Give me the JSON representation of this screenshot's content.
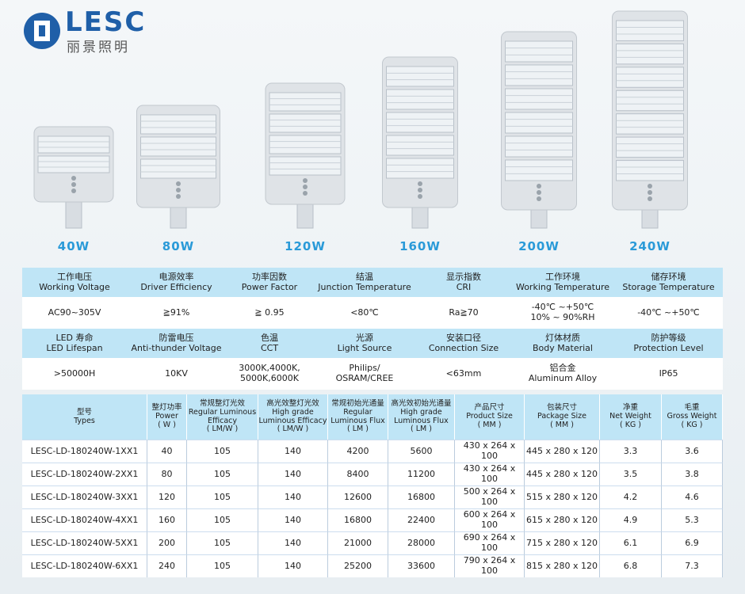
{
  "logo": {
    "brand": "LESC",
    "subtitle": "丽景照明"
  },
  "products": [
    "40W",
    "80W",
    "120W",
    "160W",
    "200W",
    "240W"
  ],
  "specs": {
    "groups": [
      {
        "headers": [
          {
            "cn": "工作电压",
            "en": "Working Voltage"
          },
          {
            "cn": "电源效率",
            "en": "Driver Efficiency"
          },
          {
            "cn": "功率因数",
            "en": "Power Factor"
          },
          {
            "cn": "结温",
            "en": "Junction Temperature"
          },
          {
            "cn": "显示指数",
            "en": "CRI"
          },
          {
            "cn": "工作环境",
            "en": "Working Temperature"
          },
          {
            "cn": "储存环境",
            "en": "Storage Temperature"
          }
        ],
        "values": [
          "AC90~305V",
          "≧91%",
          "≧ 0.95",
          "<80℃",
          "Ra≧70",
          "-40℃ ~+50℃\n10% ~ 90%RH",
          "-40℃ ~+50℃"
        ]
      },
      {
        "headers": [
          {
            "cn": "LED 寿命",
            "en": "LED Lifespan"
          },
          {
            "cn": "防雷电压",
            "en": "Anti-thunder Voltage"
          },
          {
            "cn": "色温",
            "en": "CCT"
          },
          {
            "cn": "光源",
            "en": "Light Source"
          },
          {
            "cn": "安装口径",
            "en": "Connection Size"
          },
          {
            "cn": "灯体材质",
            "en": "Body Material"
          },
          {
            "cn": "防护等级",
            "en": "Protection Level"
          }
        ],
        "values": [
          ">50000H",
          "10KV",
          "3000K,4000K,\n5000K,6000K",
          "Philips/\nOSRAM/CREE",
          "<63mm",
          "铝合金\nAluminum Alloy",
          "IP65"
        ]
      }
    ]
  },
  "table": {
    "header": [
      "型号\nTypes",
      "整灯功率\nPower\n( W )",
      "常规整灯光效\nRegular Luminous\nEfficacy\n( LM/W )",
      "高光效整灯光效\nHigh grade\nLuminous Efficacy\n( LM/W )",
      "常规初始光通量\nRegular\nLuminous Flux\n( LM )",
      "高光效初始光通量\nHigh grade\nLuminous Flux\n( LM )",
      "产品尺寸\nProduct Size\n( MM )",
      "包装尺寸\nPackage Size\n( MM )",
      "净重\nNet Weight\n( KG )",
      "毛重\nGross Weight\n( KG )"
    ],
    "rows": [
      [
        "LESC-LD-180240W-1XX1",
        40,
        105,
        140,
        4200,
        5600,
        "430 x 264 x 100",
        "445 x 280 x 120",
        3.3,
        3.6
      ],
      [
        "LESC-LD-180240W-2XX1",
        80,
        105,
        140,
        8400,
        11200,
        "430 x 264 x 100",
        "445 x 280 x 120",
        3.5,
        3.8
      ],
      [
        "LESC-LD-180240W-3XX1",
        120,
        105,
        140,
        12600,
        16800,
        "500 x 264 x 100",
        "515 x 280 x 120",
        4.2,
        4.6
      ],
      [
        "LESC-LD-180240W-4XX1",
        160,
        105,
        140,
        16800,
        22400,
        "600 x 264 x 100",
        "615 x 280 x 120",
        4.9,
        5.3
      ],
      [
        "LESC-LD-180240W-5XX1",
        200,
        105,
        140,
        21000,
        28000,
        "690 x 264 x 100",
        "715 x 280 x 120",
        6.1,
        6.9
      ],
      [
        "LESC-LD-180240W-6XX1",
        240,
        105,
        140,
        25200,
        33600,
        "790 x 264 x 100",
        "815 x 280 x 120",
        6.8,
        7.3
      ]
    ]
  }
}
